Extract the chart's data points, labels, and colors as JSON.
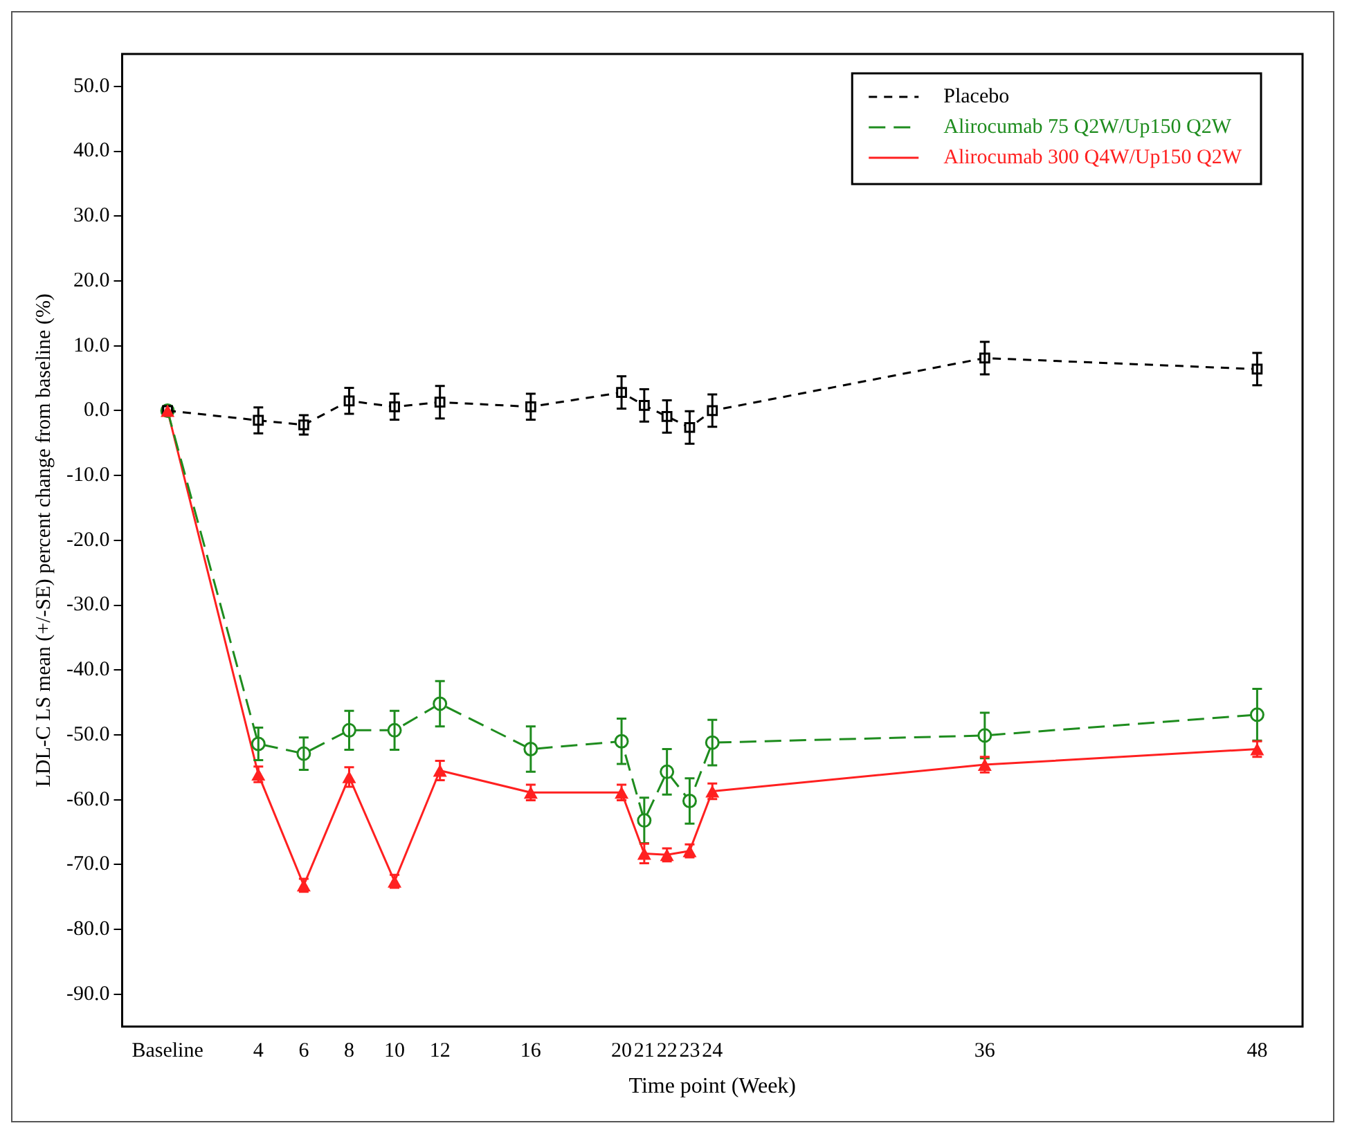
{
  "chart_data": {
    "type": "line",
    "xlabel": "Time point (Week)",
    "ylabel": "LDL-C LS mean (+/-SE) percent change from baseline (%)",
    "x": [
      0,
      4,
      6,
      8,
      10,
      12,
      16,
      20,
      21,
      22,
      23,
      24,
      36,
      48
    ],
    "xlim": [
      -2,
      50
    ],
    "xticks": [
      {
        "value": 0,
        "label": "Baseline"
      },
      4,
      6,
      8,
      10,
      12,
      16,
      20,
      21,
      22,
      23,
      24,
      36,
      48
    ],
    "ylim": [
      -95,
      55
    ],
    "yticks": [
      {
        "value": 50,
        "label": "50.0"
      },
      {
        "value": 40,
        "label": "40.0"
      },
      {
        "value": 30,
        "label": "30.0"
      },
      {
        "value": 20,
        "label": "20.0"
      },
      {
        "value": 10,
        "label": "10.0"
      },
      {
        "value": 0,
        "label": "0.0"
      },
      {
        "value": -10,
        "label": "-10.0"
      },
      {
        "value": -20,
        "label": "-20.0"
      },
      {
        "value": -30,
        "label": "-30.0"
      },
      {
        "value": -40,
        "label": "-40.0"
      },
      {
        "value": -50,
        "label": "-50.0"
      },
      {
        "value": -60,
        "label": "-60.0"
      },
      {
        "value": -70,
        "label": "-70.0"
      },
      {
        "value": -80,
        "label": "-80.0"
      },
      {
        "value": -90,
        "label": "-90.0"
      }
    ],
    "grid": false,
    "legend": "top right",
    "series": [
      {
        "name": "Placebo",
        "color": "#000000",
        "marker": "square",
        "line_style": "dashed",
        "values": [
          0,
          -1.5,
          -2.2,
          1.5,
          0.6,
          1.3,
          0.6,
          2.8,
          0.8,
          -0.9,
          -2.6,
          0,
          8.1,
          6.4
        ],
        "errors": [
          null,
          2,
          1.5,
          2,
          2,
          2.5,
          2,
          2.5,
          2.5,
          2.5,
          2.5,
          2.5,
          2.5,
          2.5
        ]
      },
      {
        "name": "Alirocumab 75 Q2W/Up150 Q2W",
        "color": "#1e8c1e",
        "marker": "circle",
        "line_style": "dashed",
        "values": [
          0,
          -51.4,
          -52.9,
          -49.3,
          -49.3,
          -45.2,
          -52.2,
          -51.0,
          -63.2,
          -55.7,
          -60.2,
          -51.2,
          -50.1,
          -46.9
        ],
        "errors": [
          null,
          2.5,
          2.5,
          3,
          3,
          3.5,
          3.5,
          3.5,
          3.5,
          3.5,
          3.5,
          3.5,
          3.5,
          4
        ]
      },
      {
        "name": "Alirocumab 300 Q4W/Up150 Q2W",
        "color": "#ff2020",
        "marker": "triangle",
        "line_style": "solid",
        "values": [
          0,
          -56.1,
          -73.2,
          -56.5,
          -72.6,
          -55.5,
          -58.9,
          -58.9,
          -68.3,
          -68.5,
          -67.9,
          -58.7,
          -54.6,
          -52.2
        ],
        "errors": [
          null,
          1.2,
          1,
          1.5,
          1,
          1.5,
          1.2,
          1.2,
          1.5,
          1,
          1,
          1.2,
          1.2,
          1.2
        ]
      }
    ]
  }
}
